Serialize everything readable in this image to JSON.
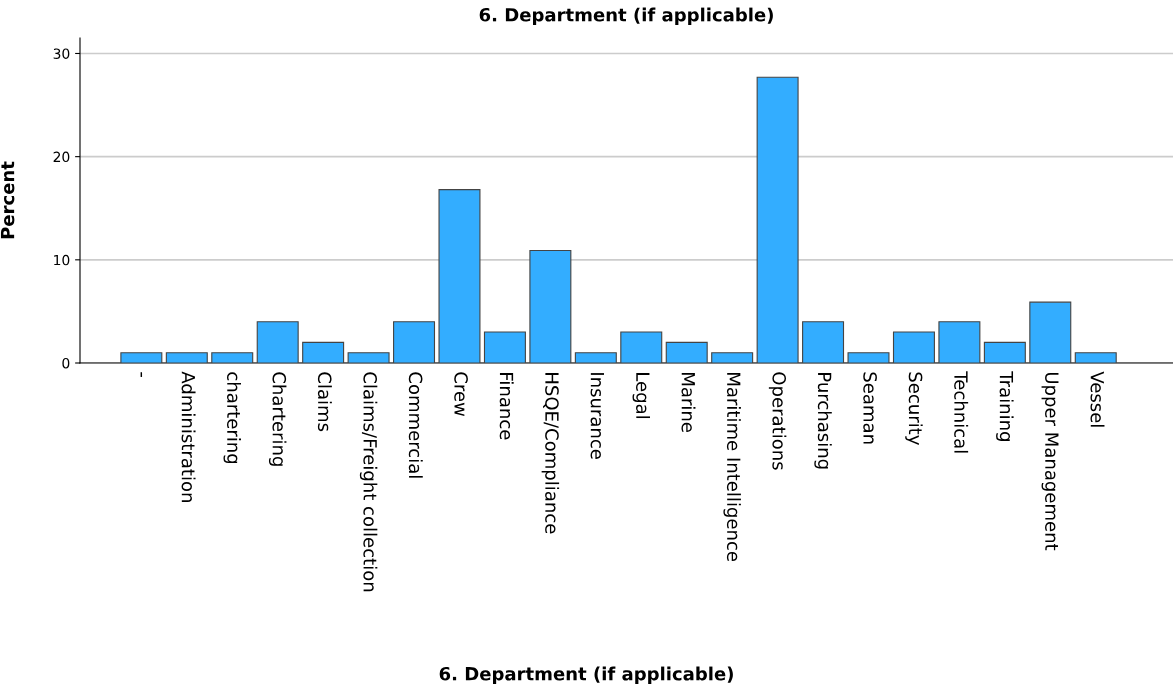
{
  "chart_data": {
    "type": "bar",
    "title": "6. Department (if applicable)",
    "xlabel": "6. Department (if applicable)",
    "ylabel": "Percent",
    "categories": [
      "-",
      "Administration",
      "chartering",
      "Chartering",
      "Claims",
      "Claims/Freight collection",
      "Commercial",
      "Crew",
      "Finance",
      "HSQE/Compliance",
      "Insurance",
      "Legal",
      "Marine",
      "Maritime Intelligence",
      "Operations",
      "Purchasing",
      "Seaman",
      "Security",
      "Technical",
      "Training",
      "Upper Management",
      "Vessel"
    ],
    "values": [
      1.0,
      1.0,
      1.0,
      4.0,
      2.0,
      1.0,
      4.0,
      16.8,
      3.0,
      10.9,
      1.0,
      3.0,
      2.0,
      1.0,
      27.7,
      4.0,
      1.0,
      3.0,
      4.0,
      2.0,
      5.9,
      1.0
    ],
    "color": "#33adff",
    "ylim": [
      0,
      31.5
    ],
    "yticks": [
      0,
      10,
      20,
      30
    ],
    "grid": "y"
  }
}
